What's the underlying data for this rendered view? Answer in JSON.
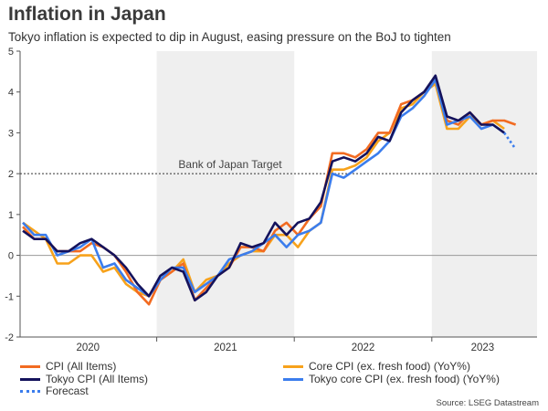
{
  "colors": {
    "cpi": "#f26b21",
    "core_cpi": "#f7a21b",
    "tokyo_cpi": "#14125c",
    "tokyo_core": "#3b7ded",
    "forecast": "#3b7ded",
    "shade": "#efefef",
    "target_line": "#333333"
  },
  "header": {
    "title": "Inflation in Japan",
    "subtitle": "Tokyo inflation is expected to dip in August, easing pressure on the BoJ to tighten"
  },
  "footer": {
    "source": "Source: LSEG Datastream"
  },
  "chart_data": {
    "type": "line",
    "title": "Inflation in Japan",
    "subtitle": "Tokyo inflation is expected to dip in August, easing pressure on the BoJ to tighten",
    "x_start": "2020-01",
    "x_tick_labels": [
      "2020",
      "2021",
      "2022",
      "2023"
    ],
    "y_ticks": [
      "-2",
      "-1",
      "0",
      "1",
      "2",
      "3",
      "4",
      "5"
    ],
    "ylim": [
      -2,
      5
    ],
    "reference_line": {
      "value": 2,
      "label": "Bank of Japan Target"
    },
    "shaded_years": [
      "2021",
      "2023"
    ],
    "series": [
      {
        "key": "cpi",
        "name": "CPI (All Items)",
        "values": [
          0.7,
          0.4,
          0.4,
          0.1,
          0.1,
          0.1,
          0.3,
          0.2,
          0.0,
          -0.4,
          -0.9,
          -1.2,
          -0.6,
          -0.4,
          -0.2,
          -1.1,
          -0.8,
          -0.5,
          -0.3,
          0.2,
          0.2,
          0.1,
          0.6,
          0.8,
          0.5,
          0.9,
          1.2,
          2.5,
          2.5,
          2.4,
          2.6,
          3.0,
          3.0,
          3.7,
          3.8,
          4.0,
          4.3,
          3.3,
          3.2,
          3.5,
          3.2,
          3.3,
          3.3,
          3.2
        ]
      },
      {
        "key": "core_cpi",
        "name": "Core CPI (ex. fresh food) (YoY%)",
        "values": [
          0.8,
          0.6,
          0.4,
          -0.2,
          -0.2,
          0.0,
          0.0,
          -0.4,
          -0.3,
          -0.7,
          -0.9,
          -1.0,
          -0.6,
          -0.4,
          -0.1,
          -0.9,
          -0.6,
          -0.5,
          -0.2,
          0.0,
          0.1,
          0.1,
          0.5,
          0.5,
          0.2,
          0.6,
          0.8,
          2.1,
          2.1,
          2.2,
          2.4,
          2.8,
          3.0,
          3.6,
          3.7,
          4.0,
          4.2,
          3.1,
          3.1,
          3.4,
          3.2,
          3.3,
          3.1
        ]
      },
      {
        "key": "tokyo_cpi",
        "name": "Tokyo CPI (All Items)",
        "values": [
          0.6,
          0.4,
          0.4,
          0.1,
          0.1,
          0.3,
          0.4,
          0.2,
          0.0,
          -0.3,
          -0.7,
          -1.0,
          -0.5,
          -0.3,
          -0.4,
          -1.1,
          -0.9,
          -0.5,
          -0.3,
          0.3,
          0.2,
          0.3,
          0.8,
          0.5,
          0.8,
          0.9,
          1.3,
          2.3,
          2.4,
          2.3,
          2.5,
          2.9,
          2.8,
          3.5,
          3.8,
          4.0,
          4.4,
          3.4,
          3.3,
          3.5,
          3.2,
          3.2,
          3.0
        ]
      },
      {
        "key": "tokyo_core",
        "name": "Tokyo core CPI (ex. fresh food) (YoY%)",
        "values": [
          0.8,
          0.5,
          0.5,
          0.0,
          0.1,
          0.2,
          0.4,
          -0.3,
          -0.2,
          -0.6,
          -0.8,
          -1.0,
          -0.6,
          -0.3,
          -0.3,
          -0.9,
          -0.7,
          -0.5,
          -0.1,
          0.0,
          0.1,
          0.3,
          0.5,
          0.2,
          0.5,
          0.6,
          0.8,
          2.0,
          1.9,
          2.1,
          2.3,
          2.5,
          2.8,
          3.4,
          3.6,
          3.9,
          4.3,
          3.2,
          3.3,
          3.4,
          3.1,
          3.2,
          3.0
        ]
      },
      {
        "key": "forecast",
        "name": "Forecast",
        "start_index": 42,
        "values": [
          3.0,
          2.6
        ]
      }
    ]
  },
  "legend": [
    {
      "key": "cpi",
      "label": "CPI (All Items)"
    },
    {
      "key": "core_cpi",
      "label": "Core CPI (ex. fresh food) (YoY%)"
    },
    {
      "key": "tokyo_cpi",
      "label": "Tokyo CPI (All Items)"
    },
    {
      "key": "tokyo_core",
      "label": "Tokyo core CPI (ex. fresh food) (YoY%)"
    },
    {
      "key": "forecast",
      "label": "Forecast"
    }
  ]
}
